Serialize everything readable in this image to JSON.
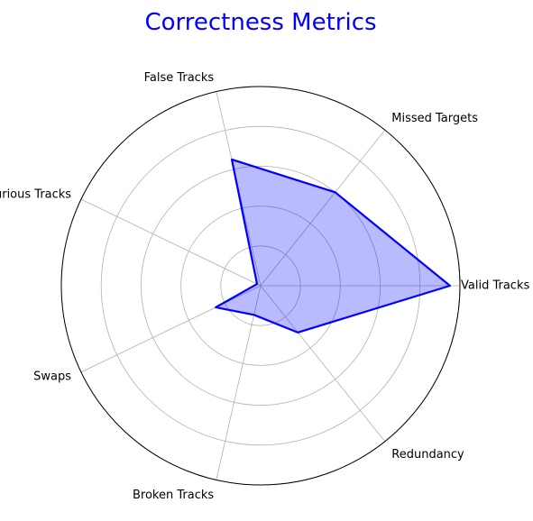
{
  "chart_data": {
    "type": "radar",
    "title": "Correctness Metrics",
    "categories": [
      "Valid Tracks",
      "Missed Targets",
      "False Tracks",
      "Spurious Tracks",
      "Swaps",
      "Broken Tracks",
      "Redundancy"
    ],
    "series": [
      {
        "values": [
          95,
          60,
          65,
          2,
          25,
          15,
          30
        ]
      }
    ],
    "rlim": [
      0,
      100
    ],
    "rticks": [
      20,
      40,
      60,
      80,
      100
    ],
    "grid": true,
    "tick_labels_shown": false,
    "colors": {
      "title": "#0000ff",
      "line": "#0000ff",
      "fill": "#0000ff",
      "fill_opacity": 0.27,
      "grid": "#b0b0b0",
      "frame": "#000000"
    }
  }
}
